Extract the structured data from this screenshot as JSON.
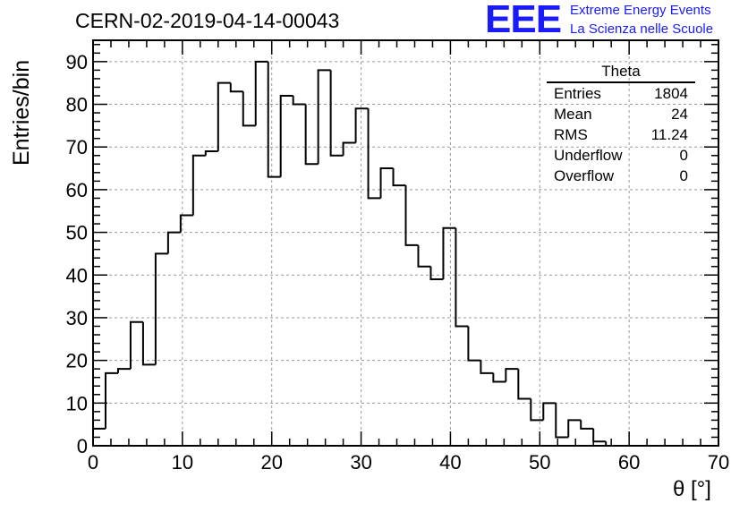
{
  "header": {
    "run_title": "CERN-02-2019-04-14-00043",
    "logo_text": "EEE",
    "logo_line1": "Extreme Energy Events",
    "logo_line2": "La Scienza nelle Scuole"
  },
  "stats": {
    "title": "Theta",
    "rows": [
      {
        "label": "Entries",
        "value": "1804"
      },
      {
        "label": "Mean",
        "value": "24"
      },
      {
        "label": "RMS",
        "value": "11.24"
      },
      {
        "label": "Underflow",
        "value": "0"
      },
      {
        "label": "Overflow",
        "value": "0"
      }
    ]
  },
  "colors": {
    "logo": "#1a1aff",
    "histogram": "#000000",
    "grid": "#999999"
  },
  "chart_data": {
    "type": "bar",
    "style": "step-histogram",
    "xlabel": "θ [°]",
    "ylabel": "Entries/bin",
    "xlim": [
      0,
      70
    ],
    "ylim": [
      0,
      95
    ],
    "bin_width": 1.4,
    "x_ticks": [
      0,
      10,
      20,
      30,
      40,
      50,
      60,
      70
    ],
    "y_ticks": [
      0,
      10,
      20,
      30,
      40,
      50,
      60,
      70,
      80,
      90
    ],
    "grid": true,
    "values": [
      4,
      17,
      18,
      29,
      19,
      45,
      50,
      54,
      68,
      69,
      85,
      83,
      75,
      90,
      63,
      82,
      80,
      66,
      88,
      68,
      71,
      79,
      58,
      65,
      61,
      47,
      42,
      39,
      51,
      28,
      20,
      17,
      15,
      18,
      11,
      6,
      10,
      2,
      6,
      4,
      1,
      0,
      0,
      0,
      0,
      0,
      0,
      0,
      0,
      0
    ]
  }
}
